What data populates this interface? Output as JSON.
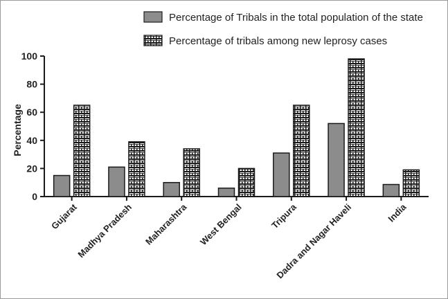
{
  "chart_data": {
    "type": "bar",
    "title": "",
    "xlabel": "",
    "ylabel": "Percentage",
    "ylim": [
      0,
      100
    ],
    "yticks": [
      0,
      20,
      40,
      60,
      80,
      100
    ],
    "categories": [
      "Gujarat",
      "Madhya Pradesh",
      "Maharashtra",
      "West Bengal",
      "Tripura",
      "Dadra and Nagar Haveli",
      "India"
    ],
    "series": [
      {
        "name": "Percentage of Tribals in the total population of the state",
        "color": "#8c8c8c",
        "pattern": "solid",
        "values": [
          15,
          21,
          10,
          6,
          31,
          52,
          8.6
        ]
      },
      {
        "name": "Percentage of tribals among new leprosy cases",
        "color": "#1a1a1a",
        "pattern": "brick",
        "values": [
          65,
          39,
          34,
          20,
          65,
          98,
          19
        ]
      }
    ],
    "grid": false,
    "legend_position": "top"
  }
}
